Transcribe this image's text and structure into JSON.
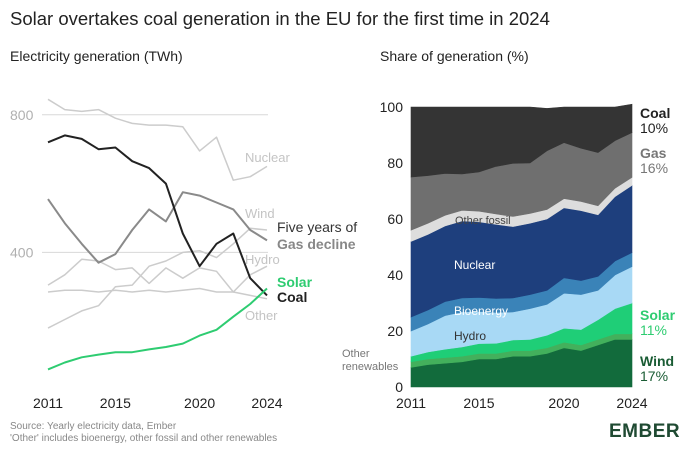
{
  "title": "Solar overtakes coal generation in the EU for the first time in 2024",
  "footer": {
    "source": "Source: Yearly electricity data, Ember",
    "note": "'Other' includes bioenergy, other fossil and other renewables"
  },
  "brand": "EMBER",
  "colors": {
    "coal": "#222222",
    "gas": "#8a8a8a",
    "solar": "#2ecc71",
    "light_line": "#cccccc",
    "grid": "#d8d8d8",
    "wind": "#126b3c",
    "other_renewables": "#43b05c",
    "solar_area": "#1fce77",
    "hydro": "#a8d9f5",
    "bioenergy": "#3a83b8",
    "nuclear": "#1e3f7d",
    "other_fossil": "#dddddd",
    "gas_area": "#6f6f6f",
    "coal_area": "#343434"
  },
  "chart_data": [
    {
      "type": "line",
      "subtitle": "Electricity generation (TWh)",
      "x": [
        2011,
        2012,
        2013,
        2014,
        2015,
        2016,
        2017,
        2018,
        2019,
        2020,
        2021,
        2022,
        2023,
        2024
      ],
      "x_ticks": [
        2011,
        2015,
        2020,
        2024
      ],
      "y_ticks": [
        400,
        800
      ],
      "ylim": [
        0,
        900
      ],
      "grid": true,
      "series": [
        {
          "name": "Nuclear",
          "values": [
            845,
            815,
            810,
            815,
            790,
            775,
            770,
            770,
            765,
            695,
            735,
            610,
            620,
            650
          ]
        },
        {
          "name": "Wind",
          "values": [
            180,
            205,
            230,
            245,
            300,
            305,
            360,
            375,
            400,
            405,
            385,
            425,
            470,
            465
          ]
        },
        {
          "name": "Hydro",
          "values": [
            305,
            335,
            380,
            375,
            350,
            355,
            310,
            355,
            325,
            355,
            345,
            285,
            335,
            360
          ]
        },
        {
          "name": "Other",
          "values": [
            285,
            290,
            290,
            285,
            290,
            285,
            290,
            285,
            290,
            295,
            285,
            285,
            275,
            265
          ]
        },
        {
          "name": "Gas",
          "label": "Five years of Gas decline",
          "label_prefix": "Five years of",
          "label_emphasis": "Gas decline",
          "values": [
            555,
            485,
            425,
            370,
            395,
            465,
            525,
            490,
            575,
            565,
            545,
            525,
            465,
            435
          ]
        },
        {
          "name": "Coal",
          "values": [
            720,
            740,
            730,
            700,
            705,
            665,
            645,
            600,
            455,
            360,
            425,
            455,
            325,
            275
          ]
        },
        {
          "name": "Solar",
          "values": [
            60,
            80,
            95,
            103,
            110,
            110,
            118,
            125,
            135,
            158,
            175,
            213,
            250,
            295
          ]
        }
      ]
    },
    {
      "type": "area",
      "subtitle": "Share of generation (%)",
      "stacked": true,
      "x": [
        2011,
        2012,
        2013,
        2014,
        2015,
        2016,
        2017,
        2018,
        2019,
        2020,
        2021,
        2022,
        2023,
        2024
      ],
      "x_ticks": [
        2011,
        2015,
        2020,
        2024
      ],
      "y_ticks": [
        0,
        20,
        40,
        60,
        80,
        100
      ],
      "ylim": [
        0,
        100
      ],
      "series": [
        {
          "name": "Wind",
          "label": "Wind",
          "value_label": "17%",
          "values": [
            7,
            8,
            8.5,
            9,
            10,
            10,
            11,
            11,
            12,
            14,
            13,
            15,
            17,
            17
          ]
        },
        {
          "name": "Other renewables",
          "label": "Other\nrenewables",
          "values": [
            2,
            2,
            2,
            2,
            2,
            2,
            2,
            2,
            2,
            2,
            2,
            2,
            2,
            2
          ]
        },
        {
          "name": "Solar",
          "label": "Solar",
          "value_label": "11%",
          "values": [
            2,
            2.5,
            3,
            3.3,
            3.5,
            3.6,
            3.8,
            4,
            4.5,
            5,
            5.5,
            7,
            9,
            11
          ]
        },
        {
          "name": "Hydro",
          "label": "Hydro",
          "values": [
            9,
            10,
            12,
            12.5,
            11.5,
            11,
            10,
            11,
            11,
            12.5,
            12.5,
            10.5,
            12,
            13
          ]
        },
        {
          "name": "Bioenergy",
          "label": "Bioenergy",
          "values": [
            5,
            5,
            5,
            5,
            5,
            5,
            5,
            5,
            5,
            5.5,
            5,
            5,
            5,
            5
          ]
        },
        {
          "name": "Nuclear",
          "label": "Nuclear",
          "values": [
            27,
            27,
            27,
            27.5,
            27,
            26.5,
            25.5,
            25.5,
            25.5,
            25,
            25,
            22,
            23,
            24
          ]
        },
        {
          "name": "Other fossil",
          "label": "Other fossil",
          "values": [
            4,
            4,
            3.8,
            3.8,
            3.8,
            3.7,
            3.6,
            3.5,
            3.4,
            3.3,
            3.3,
            3.2,
            3,
            2.9
          ]
        },
        {
          "name": "Gas",
          "label": "Gas",
          "value_label": "16%",
          "values": [
            19,
            17,
            15,
            13,
            14,
            17,
            19,
            18,
            21,
            20,
            19,
            19,
            17,
            16
          ]
        },
        {
          "name": "Coal",
          "label": "Coal",
          "value_label": "10%",
          "values": [
            25,
            24.5,
            23.7,
            23.9,
            23.2,
            21.2,
            20.1,
            20,
            15.1,
            12.7,
            14.7,
            16.3,
            12,
            10.1
          ]
        }
      ]
    }
  ]
}
